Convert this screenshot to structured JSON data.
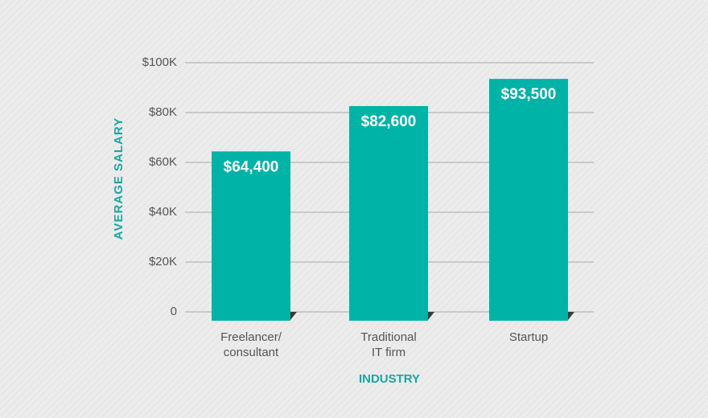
{
  "chart_data": {
    "type": "bar",
    "x_label": "INDUSTRY",
    "y_label": "AVERAGE SALARY",
    "categories": [
      "Freelancer/\nconsultant",
      "Traditional\nIT firm",
      "Startup"
    ],
    "values": [
      64400,
      82600,
      93500
    ],
    "value_labels": [
      "$64,400",
      "$82,600",
      "$93,500"
    ],
    "color": "#00b3a7",
    "ylim": [
      0,
      100000
    ],
    "yticks": [
      0,
      {
        "value": 20000,
        "label": "$20K"
      },
      {
        "value": 40000,
        "label": "$40K"
      },
      {
        "value": 60000,
        "label": "$60K"
      },
      {
        "value": 80000,
        "label": "$80K"
      },
      {
        "value": 100000,
        "label": "$100K"
      }
    ],
    "grid": true
  }
}
